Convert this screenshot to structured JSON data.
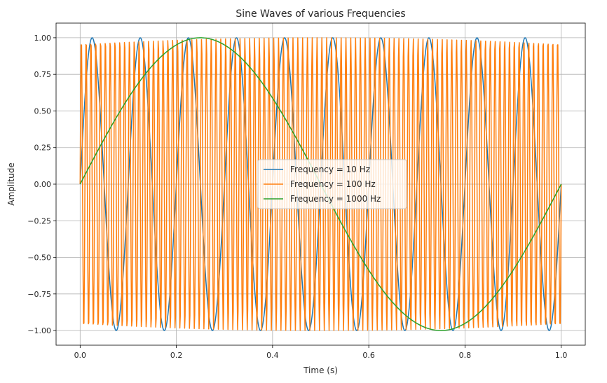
{
  "chart_data": {
    "type": "line",
    "title": "Sine Waves of various Frequencies",
    "xlabel": "Time (s)",
    "ylabel": "Amplitude",
    "xlim": [
      -0.05,
      1.05
    ],
    "ylim": [
      -1.1,
      1.1
    ],
    "xticks": [
      0.0,
      0.2,
      0.4,
      0.6,
      0.8,
      1.0
    ],
    "xtick_labels": [
      "0.0",
      "0.2",
      "0.4",
      "0.6",
      "0.8",
      "1.0"
    ],
    "yticks": [
      -1.0,
      -0.75,
      -0.5,
      -0.25,
      0.0,
      0.25,
      0.5,
      0.75,
      1.0
    ],
    "ytick_labels": [
      "−1.00",
      "−0.75",
      "−0.50",
      "−0.25",
      "0.00",
      "0.25",
      "0.50",
      "0.75",
      "1.00"
    ],
    "grid": true,
    "legend_position": "center",
    "series": [
      {
        "name": "Frequency = 10 Hz",
        "color": "#1f77b4",
        "function": "sin",
        "apparent_cycles": 10,
        "x_range": [
          0,
          1
        ],
        "samples": 1000
      },
      {
        "name": "Frequency = 100 Hz",
        "color": "#ff7f0e",
        "function": "sin",
        "apparent_cycles": 100,
        "x_range": [
          0,
          1
        ],
        "samples": 1000
      },
      {
        "name": "Frequency = 1000 Hz",
        "color": "#2ca02c",
        "function": "sin",
        "apparent_cycles": 1,
        "x_range": [
          0,
          1
        ],
        "samples": 1000
      }
    ]
  }
}
